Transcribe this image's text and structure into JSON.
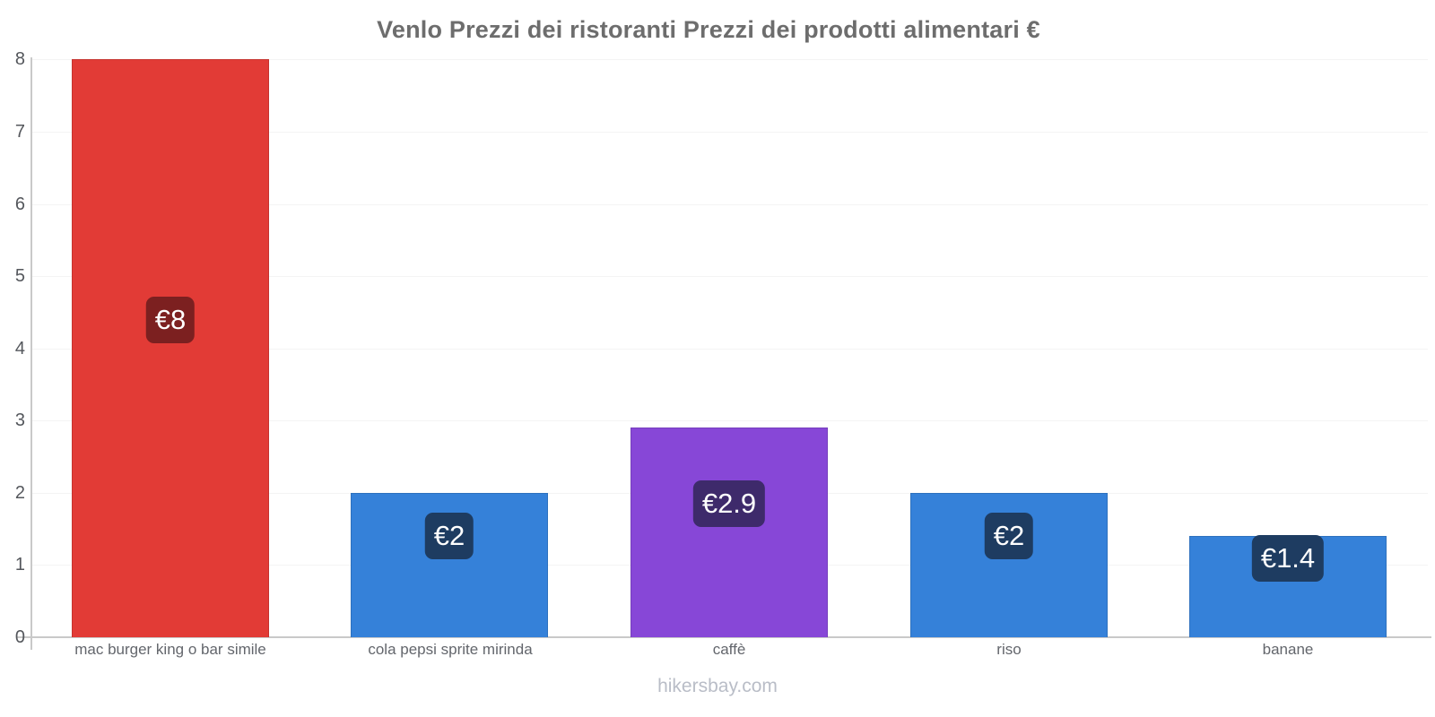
{
  "title": "Venlo Prezzi dei ristoranti Prezzi dei prodotti alimentari €",
  "footer": "hikersbay.com",
  "chart_data": {
    "type": "bar",
    "title": "Venlo Prezzi dei ristoranti Prezzi dei prodotti alimentari €",
    "xlabel": "",
    "ylabel": "",
    "ylim": [
      0,
      8
    ],
    "yticks": [
      0,
      1,
      2,
      3,
      4,
      5,
      6,
      7,
      8
    ],
    "grid": true,
    "legend_position": "none",
    "currency": "€",
    "categories": [
      "mac burger king o bar simile",
      "cola pepsi sprite mirinda",
      "caffè",
      "riso",
      "banane"
    ],
    "values": [
      8,
      2,
      2.9,
      2,
      1.4
    ],
    "bars": [
      {
        "label": "mac burger king o bar simile",
        "value": 8,
        "display": "€8",
        "bar_color": "#e23b36",
        "badge_color": "#7c2020"
      },
      {
        "label": "cola pepsi sprite mirinda",
        "value": 2,
        "display": "€2",
        "bar_color": "#3581d9",
        "badge_color": "#1e3c61"
      },
      {
        "label": "caffè",
        "value": 2.9,
        "display": "€2.9",
        "bar_color": "#8747d7",
        "badge_color": "#3e2a6b"
      },
      {
        "label": "riso",
        "value": 2,
        "display": "€2",
        "bar_color": "#3581d9",
        "badge_color": "#1e3c61"
      },
      {
        "label": "banane",
        "value": 1.4,
        "display": "€1.4",
        "bar_color": "#3581d9",
        "badge_color": "#1e3c61"
      }
    ],
    "axis_color": "#c9c9c9",
    "gridline_color": "#f4f4f4",
    "tick_label_color": "#54575c",
    "category_label_color": "#63666c",
    "title_color": "#6d6d6d",
    "watermark_color": "#b9bdc7"
  }
}
